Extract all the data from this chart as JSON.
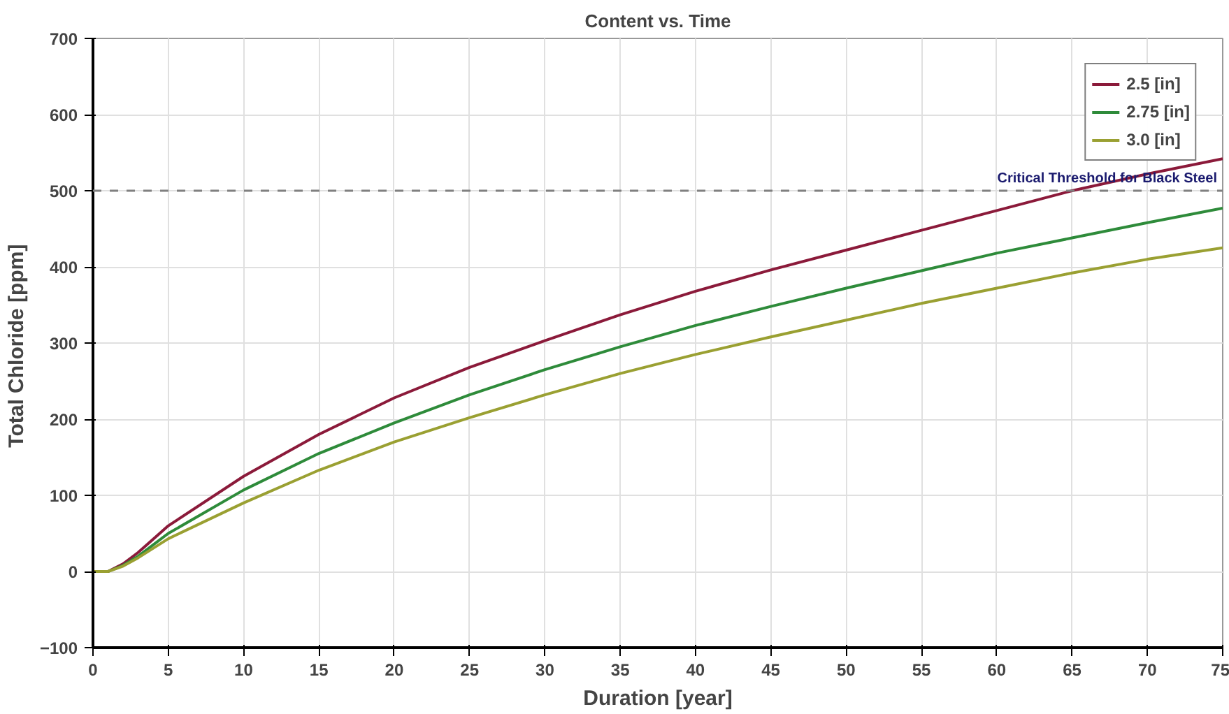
{
  "chart_data": {
    "type": "line",
    "title": "Content vs. Time",
    "xlabel": "Duration [year]",
    "ylabel": "Total Chloride  [ppm]",
    "x": [
      0,
      1,
      2,
      3,
      5,
      10,
      15,
      20,
      25,
      30,
      35,
      40,
      45,
      50,
      55,
      60,
      65,
      70,
      75
    ],
    "series": [
      {
        "name": "2.5 [in]",
        "color": "#8b1a3a",
        "values": [
          0,
          0,
          10,
          25,
          60,
          125,
          180,
          228,
          268,
          303,
          337,
          368,
          396,
          422,
          448,
          474,
          500,
          522,
          542
        ]
      },
      {
        "name": "2.75 [in]",
        "color": "#2e8b3a",
        "values": [
          0,
          0,
          8,
          20,
          50,
          107,
          155,
          195,
          232,
          265,
          295,
          323,
          348,
          372,
          395,
          418,
          438,
          458,
          477
        ]
      },
      {
        "name": "3.0 [in]",
        "color": "#9aa032",
        "values": [
          0,
          0,
          7,
          18,
          43,
          90,
          133,
          170,
          202,
          232,
          260,
          285,
          308,
          330,
          352,
          372,
          392,
          410,
          425
        ]
      }
    ],
    "xlim": [
      0,
      75
    ],
    "xticks": [
      0,
      5,
      10,
      15,
      20,
      25,
      30,
      35,
      40,
      45,
      50,
      55,
      60,
      65,
      70,
      75
    ],
    "ylim": [
      -100,
      700
    ],
    "yticks": [
      -100,
      0,
      100,
      200,
      300,
      400,
      500,
      600,
      700
    ],
    "ref_lines": [
      {
        "axis": "y",
        "value": 500,
        "label": "Critical Threshold for Black Steel",
        "color": "#808080",
        "line_style": "dashed"
      }
    ],
    "grid": true,
    "legend": "top right",
    "marker": "none",
    "line_style": "solid"
  }
}
